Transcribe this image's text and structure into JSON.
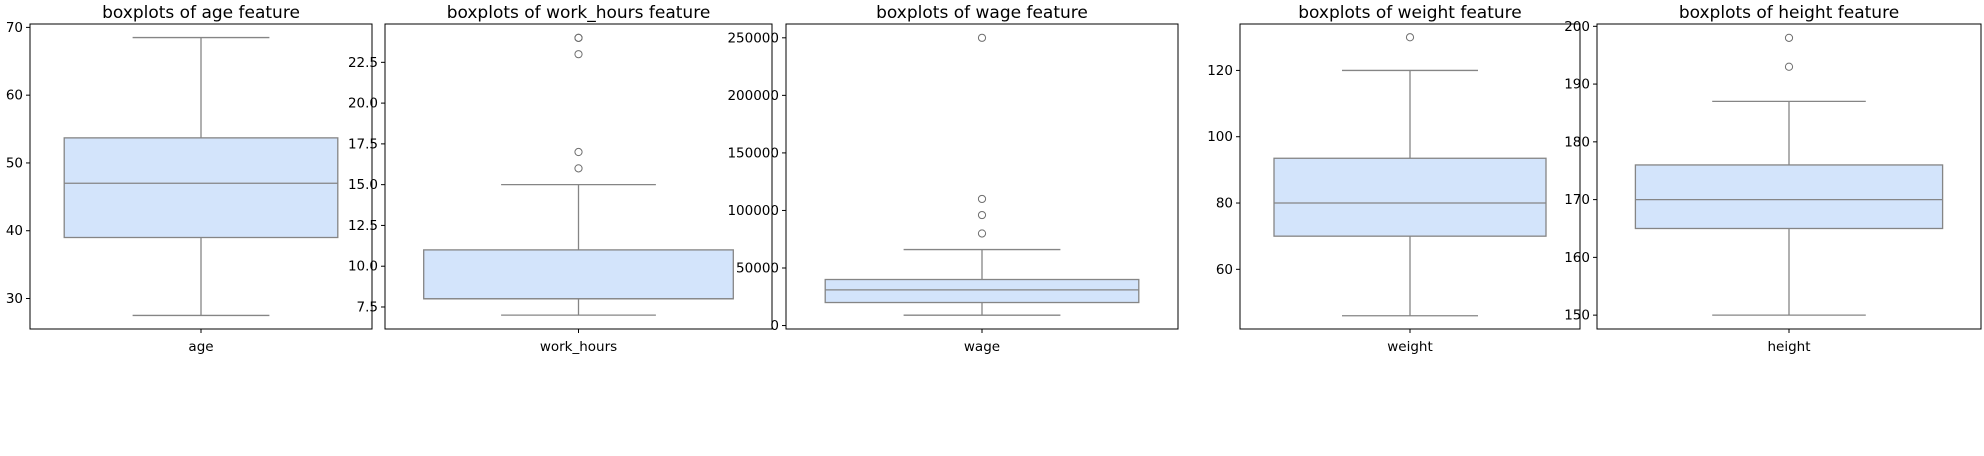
{
  "chart_data": [
    {
      "type": "boxplot",
      "title": "boxplots of age feature",
      "xlabel": "age",
      "ylim": [
        25.5,
        70.5
      ],
      "yticks": [
        30,
        40,
        50,
        60,
        70
      ],
      "box_color": "#d3e4fb",
      "stats": {
        "whisker_low": 27.5,
        "q1": 39,
        "median": 47,
        "q3": 53.7,
        "whisker_high": 68.5
      },
      "outliers": []
    },
    {
      "type": "boxplot",
      "title": "boxplots of work_hours feature",
      "xlabel": "work_hours",
      "ylim": [
        6.15,
        24.85
      ],
      "yticks": [
        7.5,
        10.0,
        12.5,
        15.0,
        17.5,
        20.0,
        22.5
      ],
      "box_color": "#d3e4fb",
      "stats": {
        "whisker_low": 7,
        "q1": 8,
        "median": 8,
        "q3": 11,
        "whisker_high": 15
      },
      "outliers": [
        16,
        17,
        23,
        24,
        24
      ]
    },
    {
      "type": "boxplot",
      "title": "boxplots of wage feature",
      "xlabel": "wage",
      "ylim": [
        -3000,
        262000
      ],
      "yticks": [
        0,
        50000,
        100000,
        150000,
        200000,
        250000
      ],
      "box_color": "#d3e4fb",
      "stats": {
        "whisker_low": 9000,
        "q1": 20000,
        "median": 31000,
        "q3": 40000,
        "whisker_high": 66000
      },
      "outliers": [
        80000,
        96000,
        110000,
        250000
      ]
    },
    {
      "type": "boxplot",
      "title": "boxplots of weight feature",
      "xlabel": "weight",
      "ylim": [
        42,
        134
      ],
      "yticks": [
        60,
        80,
        100,
        120
      ],
      "box_color": "#d3e4fb",
      "stats": {
        "whisker_low": 46,
        "q1": 70,
        "median": 80,
        "q3": 93.5,
        "whisker_high": 120
      },
      "outliers": [
        130
      ]
    },
    {
      "type": "boxplot",
      "title": "boxplots of height feature",
      "xlabel": "height",
      "ylim": [
        147.6,
        200.4
      ],
      "yticks": [
        150,
        160,
        170,
        180,
        190,
        200
      ],
      "box_color": "#d3e4fb",
      "stats": {
        "whisker_low": 150,
        "q1": 165,
        "median": 170,
        "q3": 176,
        "whisker_high": 187
      },
      "outliers": [
        193,
        198
      ]
    }
  ]
}
